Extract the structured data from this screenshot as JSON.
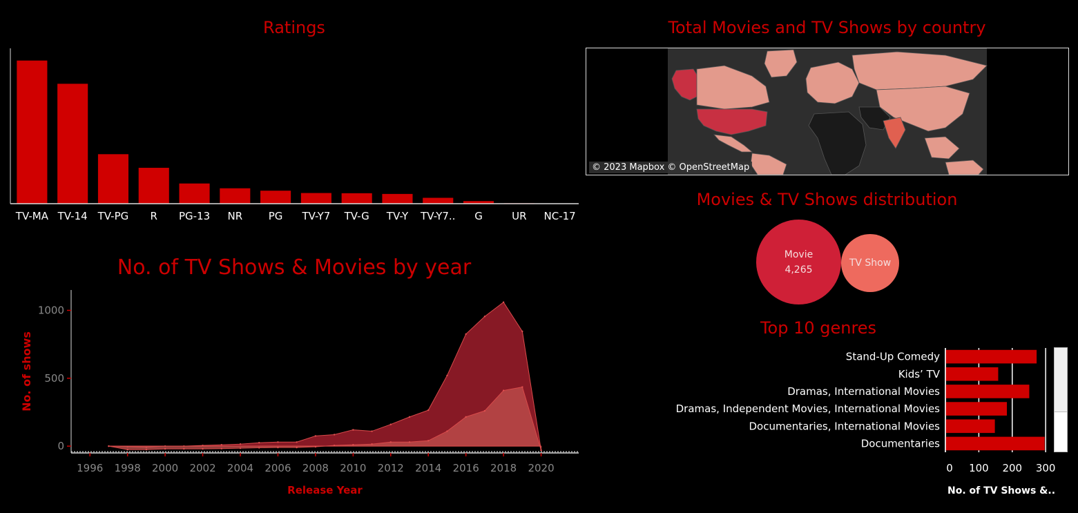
{
  "colors": {
    "bar": "#d00000",
    "title": "#cc0000",
    "movie_area": "#8e1a27",
    "tv_area": "#c0504d",
    "movie_bubble": "#cf2037",
    "tv_bubble": "#ee6a5e",
    "map_land": "#e39a8c",
    "map_us": "#c83042",
    "map_india": "#e06050",
    "map_none": "#1a1a1a"
  },
  "map": {
    "title": "Total Movies and TV Shows by country",
    "credit": "© 2023 Mapbox © OpenStreetMap"
  },
  "bubbles": {
    "title": "Movies & TV Shows distribution",
    "movie_label": "Movie",
    "movie_value": "4,265",
    "tv_label": "TV Show"
  },
  "chart_data": [
    {
      "type": "bar",
      "title": "Ratings",
      "categories": [
        "TV-MA",
        "TV-14",
        "TV-PG",
        "R",
        "PG-13",
        "NR",
        "PG",
        "TV-Y7",
        "TV-G",
        "TV-Y",
        "TV-Y7..",
        "G",
        "UR",
        "NC-17"
      ],
      "values": [
        2027,
        1698,
        701,
        508,
        286,
        218,
        184,
        151,
        148,
        138,
        83,
        37,
        7,
        3
      ],
      "ylim": [
        0,
        2200
      ],
      "xlabel": "",
      "ylabel": ""
    },
    {
      "type": "area",
      "title": "No. of TV Shows & Movies by year",
      "xlabel": "Release Year",
      "ylabel": "No. of shows",
      "xlim": [
        1995,
        2022
      ],
      "ylim": [
        -50,
        1150
      ],
      "xticks": [
        "1996",
        "1998",
        "2000",
        "2002",
        "2004",
        "2006",
        "2008",
        "2010",
        "2012",
        "2014",
        "2016",
        "2018",
        "2020"
      ],
      "yticks": [
        "0",
        "500",
        "1000"
      ],
      "x": [
        1997,
        1998,
        1999,
        2000,
        2001,
        2002,
        2003,
        2004,
        2005,
        2006,
        2007,
        2008,
        2009,
        2010,
        2011,
        2012,
        2013,
        2014,
        2015,
        2016,
        2017,
        2018,
        2019,
        2020
      ],
      "series": [
        {
          "values": [
            0,
            -5,
            -10,
            0,
            0,
            5,
            10,
            15,
            25,
            30,
            30,
            75,
            85,
            120,
            110,
            160,
            215,
            265,
            520,
            825,
            955,
            1060,
            845,
            -30
          ]
        },
        {
          "values": [
            0,
            -25,
            -25,
            -20,
            -20,
            -20,
            -18,
            -15,
            -12,
            -10,
            -10,
            -5,
            5,
            10,
            15,
            30,
            30,
            40,
            110,
            215,
            260,
            410,
            435,
            -30
          ]
        }
      ]
    },
    {
      "type": "bar",
      "orientation": "horizontal",
      "title": "Top 10 genres",
      "xlabel": "No. of TV Shows &..",
      "categories": [
        "Stand-Up Comedy",
        "Kids’ TV",
        "Dramas, International Movies",
        "Dramas, Independent Movies, International Movies",
        "Documentaries, International Movies",
        "Documentaries"
      ],
      "values": [
        273,
        158,
        251,
        184,
        148,
        297
      ],
      "xlim": [
        0,
        310
      ],
      "xticks": [
        "0",
        "100",
        "200",
        "300"
      ]
    }
  ]
}
